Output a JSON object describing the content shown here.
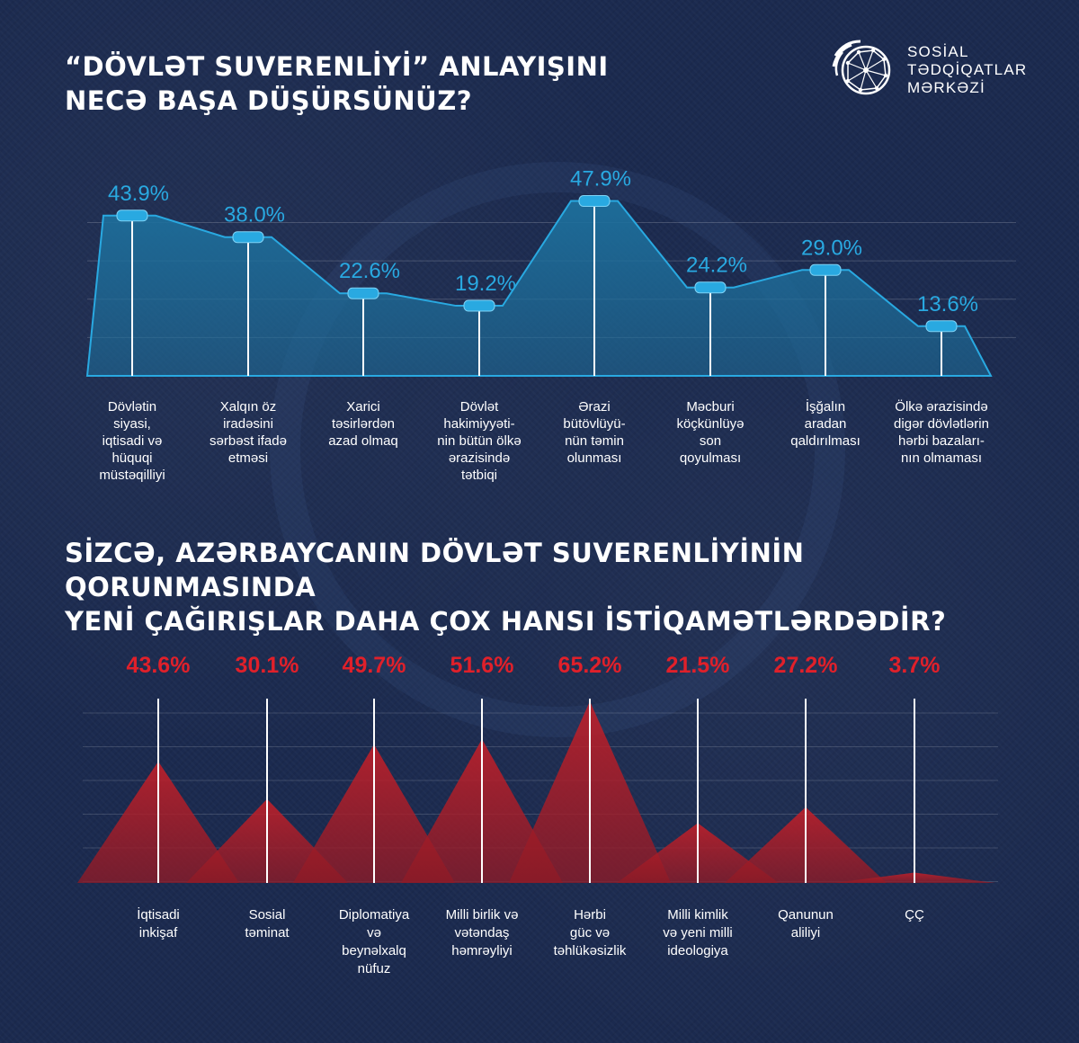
{
  "header": {
    "title_line1": "“DÖVLƏT SUVERENLİYİ” ANLAYIŞINI",
    "title_line2": "NECƏ BAŞA DÜŞÜRSÜNÜZ?"
  },
  "logo": {
    "line1": "SOSİAL",
    "line2": "TƏDQİQATLAR",
    "line3": "MƏRKƏZİ",
    "icon": "globe-network-icon"
  },
  "section2": {
    "title_line1": "SİZCƏ, AZƏRBAYCANIN DÖVLƏT SUVERENLİYİNİN QORUNMASINDA",
    "title_line2": "YENİ ÇAĞIRIŞLAR DAHA ÇOX HANSI İSTİQAMƏTLƏRDƏDİR?"
  },
  "colors": {
    "background": "#1b2a4f",
    "accent_blue": "#29a9e1",
    "area_fill": "#1d6f9c",
    "accent_red": "#e0202a"
  },
  "chart_data": [
    {
      "type": "area",
      "title": "“DÖVLƏT SUVERENLİYİ” ANLAYIŞINI NECƏ BAŞA DÜŞÜRSÜNÜZ?",
      "unit": "%",
      "ylim": [
        0,
        50
      ],
      "categories": [
        [
          "Dövlətin",
          "siyasi,",
          "iqtisadi və",
          "hüquqi",
          "müstəqilliyi"
        ],
        [
          "Xalqın öz",
          "iradəsini",
          "sərbəst ifadə",
          "etməsi"
        ],
        [
          "Xarici",
          "təsirlərdən",
          "azad olmaq"
        ],
        [
          "Dövlət",
          "hakimiyyəti-",
          "nin bütün ölkə",
          "ərazisində",
          "tətbiqi"
        ],
        [
          "Ərazi",
          "bütövlüyü-",
          "nün təmin",
          "olunması"
        ],
        [
          "Məcburi",
          "köçkünlüyə",
          "son",
          "qoyulması"
        ],
        [
          "İşğalın",
          "aradan",
          "qaldırılması"
        ],
        [
          "Ölkə ərazisində",
          "digər dövlətlərin",
          "hərbi bazaları-",
          "nın olmaması"
        ]
      ],
      "values": [
        43.9,
        38.0,
        22.6,
        19.2,
        47.9,
        24.2,
        29.0,
        13.6
      ],
      "labels": [
        "43.9%",
        "38.0%",
        "22.6%",
        "19.2%",
        "47.9%",
        "24.2%",
        "29.0%",
        "13.6%"
      ]
    },
    {
      "type": "area",
      "title": "SİZCƏ, AZƏRBAYCANIN DÖVLƏT SUVERENLİYİNİN QORUNMASINDA YENİ ÇAĞIRIŞLAR DAHA ÇOX HANSI İSTİQAMƏTLƏRDƏDİR?",
      "unit": "%",
      "ylim": [
        0,
        70
      ],
      "categories": [
        [
          "İqtisadi",
          "inkişaf"
        ],
        [
          "Sosial",
          "təminat"
        ],
        [
          "Diplomatiya",
          "və",
          "beynəlxalq",
          "nüfuz"
        ],
        [
          "Milli birlik və",
          "vətəndaş",
          "həmrəyliyi"
        ],
        [
          "Hərbi",
          "güc və",
          "təhlükəsizlik"
        ],
        [
          "Milli kimlik",
          "və yeni milli",
          "ideologiya"
        ],
        [
          "Qanunun",
          "aliliyi"
        ],
        [
          "ÇÇ"
        ]
      ],
      "values": [
        43.6,
        30.1,
        49.7,
        51.6,
        65.2,
        21.5,
        27.2,
        3.7
      ],
      "labels": [
        "43.6%",
        "30.1%",
        "49.7%",
        "51.6%",
        "65.2%",
        "21.5%",
        "27.2%",
        "3.7%"
      ]
    }
  ]
}
